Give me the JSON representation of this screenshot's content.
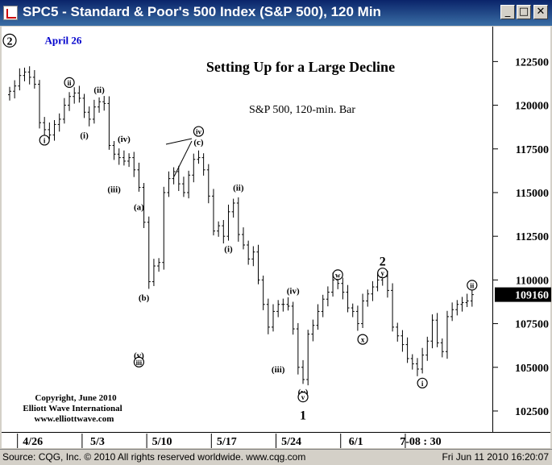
{
  "window": {
    "title": "SPC5 - Standard & Poor's 500 Index (S&P 500), 120 Min",
    "buttons": [
      "minimize",
      "maximize",
      "close"
    ]
  },
  "status_bar": {
    "source": "Source: CQG, Inc. © 2010 All rights reserved worldwide. www.cqg.com",
    "timestamp": "Fri Jun 11 2010 16:20:07"
  },
  "copyright": [
    "Copyright, June 2010",
    "Elliott Wave International",
    "www.elliottwave.com"
  ],
  "colors": {
    "title_bar": "#0a246a",
    "price_box": "#000000",
    "date_label": "#0000cc",
    "bars": "#000000"
  },
  "chart_data": {
    "type": "ohlc",
    "title": "Setting Up for a Large Decline",
    "subtitle": "S&P 500, 120-min. Bar",
    "last_price": "109160",
    "last_value": 1091.6,
    "y_ticks": [
      "122500",
      "120000",
      "117500",
      "115000",
      "112500",
      "110000",
      "107500",
      "105000",
      "102500"
    ],
    "y_tick_values": [
      1225,
      1200,
      1175,
      1150,
      1125,
      1100,
      1075,
      1050,
      1025
    ],
    "ylim": [
      1013,
      1245
    ],
    "x_ticks": [
      "4/26",
      "5/3",
      "5/10",
      "5/17",
      "5/24",
      "6/1",
      "7-08 : 30"
    ],
    "x_tick_bar_index": [
      4,
      17,
      30,
      43,
      56,
      69,
      82
    ],
    "n_bars": 94,
    "series": [
      {
        "close": [
          1208,
          1211,
          1217,
          1219,
          1216,
          1212,
          1190,
          1186,
          1183,
          1189,
          1192,
          1200,
          1205,
          1207,
          1204,
          1196,
          1192,
          1199,
          1202,
          1201,
          1177,
          1172,
          1170,
          1168,
          1170,
          1163,
          1153,
          1133,
          1099,
          1108,
          1110,
          1150,
          1158,
          1162,
          1155,
          1150,
          1160,
          1169,
          1170,
          1163,
          1148,
          1128,
          1131,
          1125,
          1139,
          1144,
          1126,
          1120,
          1112,
          1116,
          1100,
          1086,
          1073,
          1082,
          1086,
          1086,
          1085,
          1072,
          1050,
          1043,
          1069,
          1074,
          1082,
          1089,
          1093,
          1100,
          1098,
          1093,
          1084,
          1082,
          1075,
          1088,
          1092,
          1096,
          1100,
          1102,
          1094,
          1073,
          1068,
          1063,
          1055,
          1052,
          1049,
          1057,
          1065,
          1077,
          1064,
          1059,
          1079,
          1083,
          1086,
          1087,
          1088,
          1091.6
        ]
      }
    ],
    "wave_labels": [
      {
        "text": "2",
        "bar": 0,
        "price": 1237,
        "style": "circle"
      },
      {
        "text": "April 26",
        "bar": 3,
        "price": 1237,
        "style": "date"
      },
      {
        "text": "i",
        "bar": 7,
        "price": 1180,
        "style": "circle"
      },
      {
        "text": "ii",
        "bar": 12,
        "price": 1213,
        "style": "circle"
      },
      {
        "text": "i",
        "bar": 15,
        "price": 1183,
        "style": "paren"
      },
      {
        "text": "ii",
        "bar": 18,
        "price": 1209,
        "style": "paren"
      },
      {
        "text": "iv",
        "bar": 23,
        "price": 1181,
        "style": "paren"
      },
      {
        "text": "iii",
        "bar": 21,
        "price": 1152,
        "style": "paren"
      },
      {
        "text": "a",
        "bar": 26,
        "price": 1142,
        "style": "paren"
      },
      {
        "text": "b",
        "bar": 27,
        "price": 1090,
        "style": "paren"
      },
      {
        "text": "v",
        "bar": 26,
        "price": 1057,
        "style": "paren"
      },
      {
        "text": "iii",
        "bar": 26,
        "price": 1053,
        "style": "circle"
      },
      {
        "text": "iv",
        "bar": 38,
        "price": 1185,
        "style": "circle"
      },
      {
        "text": "c",
        "bar": 38,
        "price": 1179,
        "style": "paren"
      },
      {
        "text": "i",
        "bar": 44,
        "price": 1118,
        "style": "paren"
      },
      {
        "text": "ii",
        "bar": 46,
        "price": 1153,
        "style": "paren"
      },
      {
        "text": "iv",
        "bar": 57,
        "price": 1094,
        "style": "paren"
      },
      {
        "text": "iii",
        "bar": 54,
        "price": 1049,
        "style": "paren"
      },
      {
        "text": "v",
        "bar": 59,
        "price": 1036,
        "style": "paren"
      },
      {
        "text": "v",
        "bar": 59,
        "price": 1033,
        "style": "circle"
      },
      {
        "text": "1",
        "bar": 59,
        "price": 1023,
        "style": "bold"
      },
      {
        "text": "w",
        "bar": 66,
        "price": 1103,
        "style": "circle"
      },
      {
        "text": "x",
        "bar": 71,
        "price": 1066,
        "style": "circle"
      },
      {
        "text": "y",
        "bar": 75,
        "price": 1104,
        "style": "circle"
      },
      {
        "text": "2",
        "bar": 75,
        "price": 1111,
        "style": "bold"
      },
      {
        "text": "i",
        "bar": 83,
        "price": 1041,
        "style": "circle"
      },
      {
        "text": "ii",
        "bar": 93,
        "price": 1097,
        "style": "circle"
      }
    ]
  }
}
